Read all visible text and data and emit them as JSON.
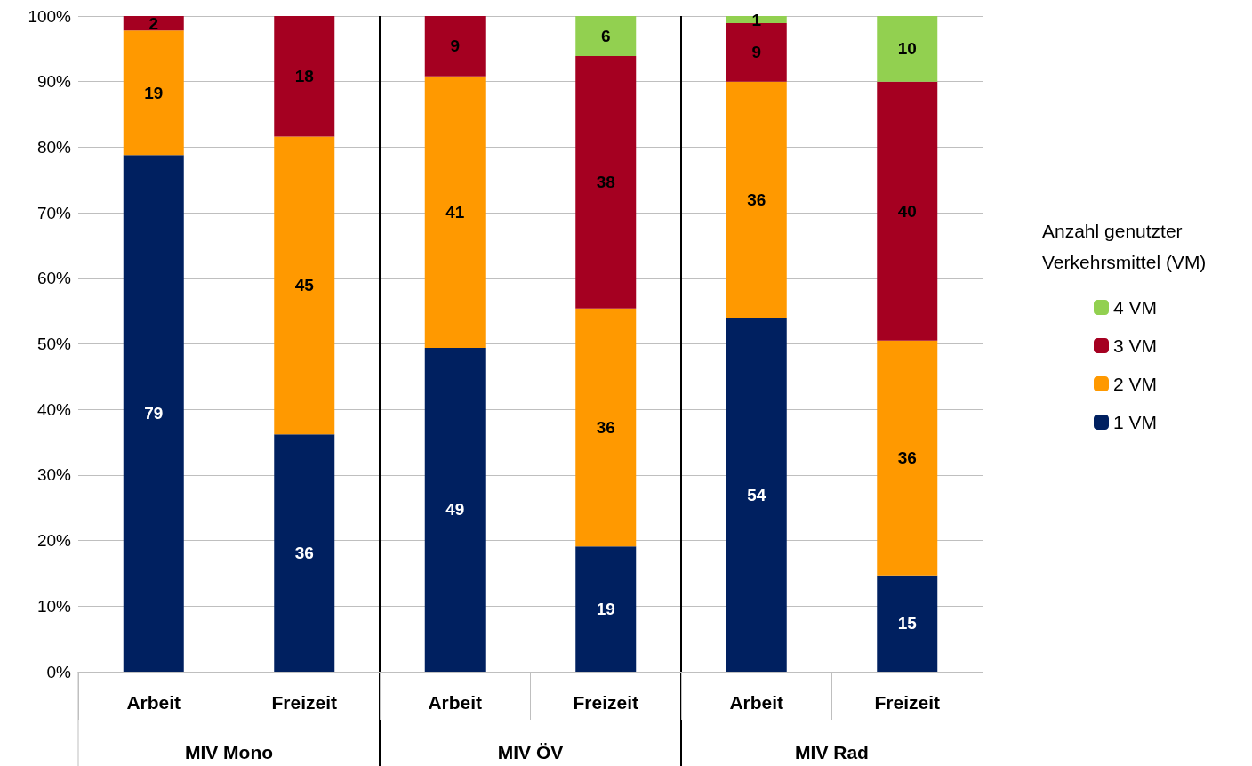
{
  "chart_data": {
    "type": "bar",
    "stacked": true,
    "categories": [
      "Arbeit",
      "Freizeit",
      "Arbeit",
      "Freizeit",
      "Arbeit",
      "Freizeit"
    ],
    "annotations": [
      "MIV Mono",
      "MIV ÖV",
      "MIV Rad"
    ],
    "legend_title": "Anzahl genutzter Verkehrsmittel (VM)",
    "legend": "right",
    "grid": "y",
    "ylim": [
      0,
      100
    ],
    "yticks": [
      {
        "value": 0,
        "label": "0%"
      },
      {
        "value": 10,
        "label": "10%"
      },
      {
        "value": 20,
        "label": "20%"
      },
      {
        "value": 30,
        "label": "30%"
      },
      {
        "value": 40,
        "label": "40%"
      },
      {
        "value": 50,
        "label": "50%"
      },
      {
        "value": 60,
        "label": "60%"
      },
      {
        "value": 70,
        "label": "70%"
      },
      {
        "value": 80,
        "label": "80%"
      },
      {
        "value": 90,
        "label": "90%"
      },
      {
        "value": 100,
        "label": "100%"
      }
    ],
    "series": [
      {
        "name": "1 VM",
        "color": "#002060",
        "values": [
          78.8,
          36.2,
          49.4,
          19.1,
          54.0,
          14.7
        ],
        "value_labels": [
          "79",
          "36",
          "49",
          "19",
          "54",
          "15"
        ]
      },
      {
        "name": "2 VM",
        "color": "#ff9900",
        "values": [
          19.0,
          45.4,
          41.4,
          36.3,
          36.0,
          35.8
        ],
        "value_labels": [
          "19",
          "45",
          "41",
          "36",
          "36",
          "36"
        ]
      },
      {
        "name": "3 VM",
        "color": "#a50021",
        "values": [
          2.2,
          18.4,
          9.2,
          38.5,
          8.9,
          39.5
        ],
        "value_labels": [
          "2",
          "18",
          "9",
          "38",
          "9",
          "40"
        ]
      },
      {
        "name": "4 VM",
        "color": "#92d050",
        "values": [
          null,
          null,
          null,
          6.1,
          1.1,
          10.0
        ],
        "value_labels": [
          null,
          null,
          null,
          "6",
          "1",
          "10"
        ]
      }
    ]
  }
}
